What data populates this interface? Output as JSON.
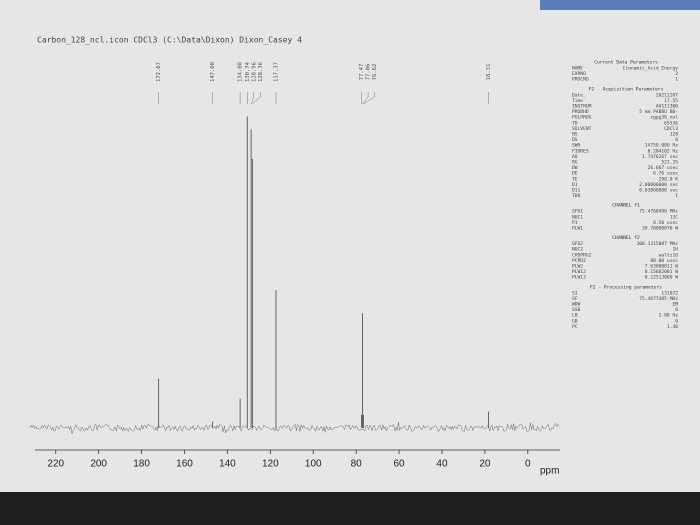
{
  "chart_data": {
    "type": "spectrum",
    "title": "Carbon_128_ncl.icon CDCl3 (C:\\Data\\Dixon) Dixon_Casey 4",
    "x_label": "ppm",
    "x": [
      172.07,
      147.0,
      134.08,
      130.74,
      128.96,
      128.36,
      117.37,
      77.47,
      77.06,
      76.62,
      18.31
    ],
    "peak_labels": [
      "172.07",
      "147.00",
      "134.08",
      "130.74",
      "128.96",
      "128.36",
      "117.37",
      "77.47",
      "77.06",
      "76.62",
      "18.31"
    ],
    "values": [
      15,
      2,
      9,
      95,
      91,
      82,
      42,
      4,
      35,
      4,
      5
    ],
    "color": "#555555",
    "xlim": [
      232,
      -15
    ],
    "ylim": [
      0,
      100
    ],
    "xticks": [
      220,
      200,
      180,
      160,
      140,
      120,
      100,
      80,
      60,
      40,
      20,
      0
    ]
  },
  "parameters": [
    {
      "heading": "Current Data Parameters",
      "rows": [
        [
          "NAME",
          "Cinnamic_Acid_Energy"
        ],
        [
          "EXPNO",
          "2"
        ],
        [
          "PROCNO",
          "1"
        ]
      ]
    },
    {
      "heading": "F2 - Acquisition Parameters",
      "rows": [
        [
          "Date_",
          "20211207"
        ],
        [
          "Time",
          "17.55"
        ],
        [
          "INSTRUM",
          "AV111300"
        ],
        [
          "PROBHD",
          "5 mm PABBO BB-"
        ],
        [
          "PULPROG",
          "zgpg30_nol"
        ],
        [
          "TD",
          "65536"
        ],
        [
          "SOLVENT",
          "CDCl3"
        ],
        [
          "NS",
          "128"
        ],
        [
          "DS",
          "0"
        ],
        [
          "SWH",
          "14750.000 Hz"
        ],
        [
          "FIDRES",
          "0.284102 Hz"
        ],
        [
          "AQ",
          "1.7476267 sec"
        ],
        [
          "RG",
          "521.35"
        ],
        [
          "DW",
          "26.667 usec"
        ],
        [
          "DE",
          "6.76 usec"
        ],
        [
          "TE",
          "298.0 K"
        ],
        [
          "D1",
          "2.00000000 sec"
        ],
        [
          "D11",
          "0.03000000 sec"
        ],
        [
          "TD0",
          "1"
        ]
      ]
    },
    {
      "heading": "CHANNEL f1",
      "rows": [
        [
          "SFO1",
          "75.4760490 MHz"
        ],
        [
          "NUC1",
          "13C"
        ],
        [
          "P1",
          "8.50 usec"
        ],
        [
          "PLW1",
          "39.70000076 W"
        ]
      ]
    },
    {
      "heading": "CHANNEL f2",
      "rows": [
        [
          "SFO2",
          "300.1315007 MHz"
        ],
        [
          "NUC2",
          "1H"
        ],
        [
          "CPDPRG2",
          "waltz16"
        ],
        [
          "PCPD2",
          "80.00 usec"
        ],
        [
          "PLW2",
          "7.63000011 W"
        ],
        [
          "PLW12",
          "0.15662001 W"
        ],
        [
          "PLW13",
          "0.12513000 W"
        ]
      ]
    },
    {
      "heading": "F2 - Processing parameters",
      "rows": [
        [
          "SI",
          "131072"
        ],
        [
          "SF",
          "75.4677485 MHz"
        ],
        [
          "WDW",
          "EM"
        ],
        [
          "SSB",
          "0"
        ],
        [
          "LB",
          "2.00 Hz"
        ],
        [
          "GB",
          "0"
        ],
        [
          "PC",
          "1.40"
        ]
      ]
    }
  ]
}
